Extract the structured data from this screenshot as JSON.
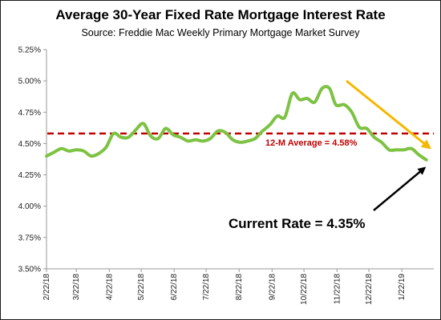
{
  "chart_data": {
    "type": "line",
    "title": "Average 30-Year Fixed Rate Mortgage Interest Rate",
    "subtitle": "Source: Freddie Mac Weekly Primary Mortgage Market Survey",
    "xlabel": "",
    "ylabel": "",
    "ylim": [
      3.5,
      5.25
    ],
    "y_ticks": [
      "3.50%",
      "3.75%",
      "4.00%",
      "4.25%",
      "4.50%",
      "4.75%",
      "5.00%",
      "5.25%"
    ],
    "x_ticks": [
      "2/22/18",
      "3/22/18",
      "4/22/18",
      "5/22/18",
      "6/22/18",
      "7/22/18",
      "8/22/18",
      "9/22/18",
      "10/22/18",
      "11/22/18",
      "12/22/18",
      "1/22/19"
    ],
    "grid": false,
    "series": [
      {
        "color": "#7dc242",
        "x": [
          "2018-02-22",
          "2018-03-01",
          "2018-03-08",
          "2018-03-15",
          "2018-03-22",
          "2018-03-29",
          "2018-04-05",
          "2018-04-12",
          "2018-04-19",
          "2018-04-26",
          "2018-05-03",
          "2018-05-10",
          "2018-05-17",
          "2018-05-24",
          "2018-05-31",
          "2018-06-07",
          "2018-06-14",
          "2018-06-21",
          "2018-06-28",
          "2018-07-05",
          "2018-07-12",
          "2018-07-19",
          "2018-07-26",
          "2018-08-02",
          "2018-08-09",
          "2018-08-16",
          "2018-08-23",
          "2018-08-30",
          "2018-09-06",
          "2018-09-13",
          "2018-09-20",
          "2018-09-27",
          "2018-10-04",
          "2018-10-11",
          "2018-10-18",
          "2018-10-25",
          "2018-11-01",
          "2018-11-08",
          "2018-11-15",
          "2018-11-21",
          "2018-11-29",
          "2018-12-06",
          "2018-12-13",
          "2018-12-20",
          "2018-12-27",
          "2019-01-03",
          "2019-01-10",
          "2019-01-17",
          "2019-01-24",
          "2019-01-31",
          "2019-02-07",
          "2019-02-14"
        ],
        "values": [
          4.4,
          4.43,
          4.46,
          4.44,
          4.45,
          4.44,
          4.4,
          4.42,
          4.47,
          4.58,
          4.55,
          4.55,
          4.61,
          4.66,
          4.56,
          4.54,
          4.62,
          4.57,
          4.55,
          4.52,
          4.53,
          4.52,
          4.54,
          4.6,
          4.59,
          4.53,
          4.51,
          4.52,
          4.54,
          4.6,
          4.65,
          4.72,
          4.71,
          4.9,
          4.85,
          4.86,
          4.83,
          4.94,
          4.94,
          4.81,
          4.81,
          4.75,
          4.63,
          4.62,
          4.55,
          4.51,
          4.45,
          4.45,
          4.45,
          4.46,
          4.41,
          4.37
        ]
      }
    ],
    "reference_line": {
      "value": 4.58,
      "color": "#c00000",
      "label": "12-M Average = 4.58%"
    },
    "annotations": [
      {
        "text": "Current Rate = 4.35%",
        "color": "#000000"
      },
      {
        "text": "",
        "color": "#f5b800"
      }
    ],
    "x_range": [
      "2018-02-22",
      "2019-02-21"
    ]
  }
}
